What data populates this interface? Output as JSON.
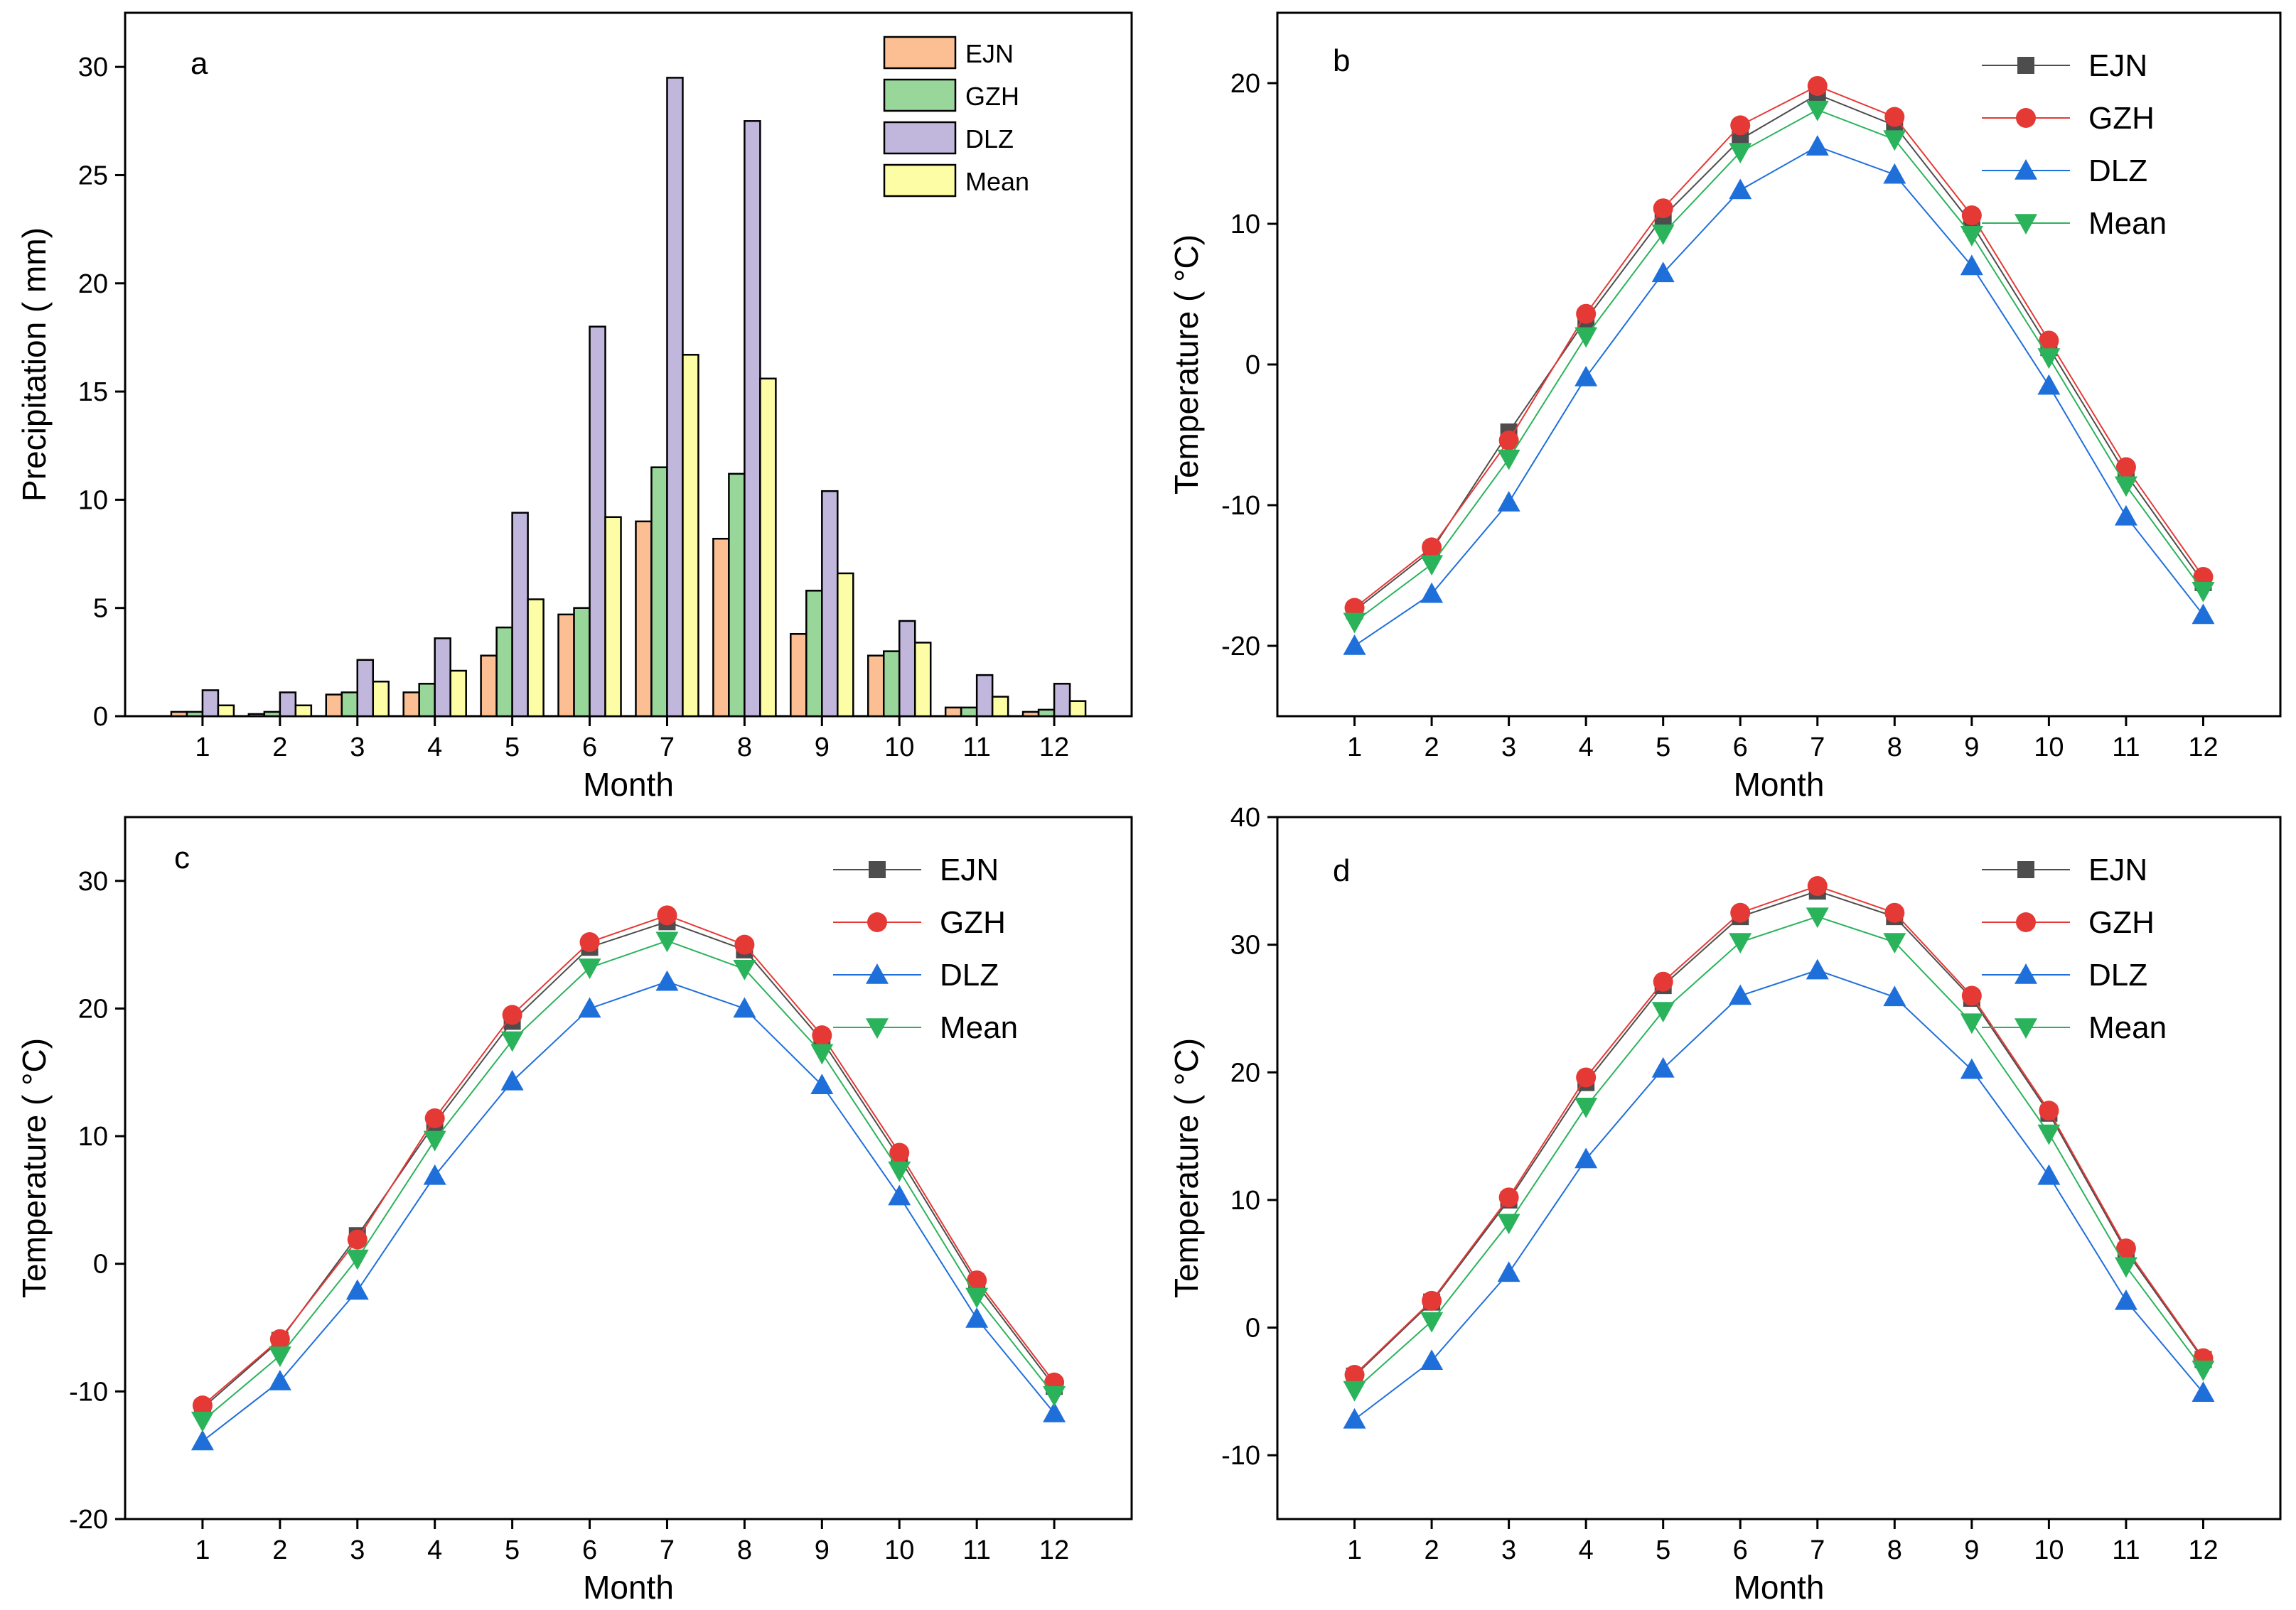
{
  "figure": {
    "panel_count": 4
  },
  "chart_data": [
    {
      "type": "bar",
      "panel": "a",
      "xlabel": "Month",
      "ylabel": "Precipitation ( mm)",
      "ylim": [
        0,
        32.5
      ],
      "yticks": [
        0,
        5,
        10,
        15,
        20,
        25,
        30
      ],
      "categories": [
        "1",
        "2",
        "3",
        "4",
        "5",
        "6",
        "7",
        "8",
        "9",
        "10",
        "11",
        "12"
      ],
      "legend_position": "top-right",
      "series": [
        {
          "name": "EJN",
          "color": "#fbbf93",
          "values": [
            0.2,
            0.1,
            1.0,
            1.1,
            2.8,
            4.7,
            9.0,
            8.2,
            3.8,
            2.8,
            0.4,
            0.2
          ]
        },
        {
          "name": "GZH",
          "color": "#98d69a",
          "values": [
            0.2,
            0.2,
            1.1,
            1.5,
            4.1,
            5.0,
            11.5,
            11.2,
            5.8,
            3.0,
            0.4,
            0.3
          ]
        },
        {
          "name": "DLZ",
          "color": "#c1b6dc",
          "values": [
            1.2,
            1.1,
            2.6,
            3.6,
            9.4,
            18.0,
            29.5,
            27.5,
            10.4,
            4.4,
            1.9,
            1.5
          ]
        },
        {
          "name": "Mean",
          "color": "#fdfda6",
          "values": [
            0.5,
            0.5,
            1.6,
            2.1,
            5.4,
            9.2,
            16.7,
            15.6,
            6.6,
            3.4,
            0.9,
            0.7
          ]
        }
      ]
    },
    {
      "type": "line",
      "panel": "b",
      "xlabel": "Month",
      "ylabel": "Temperature ( °C)",
      "ylim": [
        -25,
        25
      ],
      "yticks": [
        -20,
        -10,
        0,
        10,
        20
      ],
      "x": [
        1,
        2,
        3,
        4,
        5,
        6,
        7,
        8,
        9,
        10,
        11,
        12
      ],
      "legend_position": "top-right",
      "series": [
        {
          "name": "EJN",
          "color": "#4d4d4d",
          "marker": "square",
          "values": [
            -17.5,
            -13.2,
            -4.8,
            3.2,
            10.5,
            16.0,
            19.2,
            17.0,
            10.0,
            1.2,
            -7.8,
            -15.5
          ]
        },
        {
          "name": "GZH",
          "color": "#e53935",
          "marker": "circle",
          "values": [
            -17.3,
            -13.0,
            -5.4,
            3.6,
            11.1,
            17.0,
            19.8,
            17.6,
            10.6,
            1.7,
            -7.3,
            -15.1
          ]
        },
        {
          "name": "DLZ",
          "color": "#1f6fdb",
          "marker": "triangle-up",
          "values": [
            -20.0,
            -16.3,
            -9.8,
            -0.9,
            6.5,
            12.4,
            15.5,
            13.5,
            7.0,
            -1.5,
            -10.8,
            -17.8
          ]
        },
        {
          "name": "Mean",
          "color": "#2bb35b",
          "marker": "triangle-down",
          "values": [
            -18.3,
            -14.2,
            -6.7,
            2.0,
            9.3,
            15.1,
            18.1,
            16.0,
            9.2,
            0.5,
            -8.6,
            -16.1
          ]
        }
      ]
    },
    {
      "type": "line",
      "panel": "c",
      "xlabel": "Month",
      "ylabel": "Temperature ( °C)",
      "ylim": [
        -20,
        35
      ],
      "yticks": [
        -20,
        -10,
        0,
        10,
        20,
        30
      ],
      "x": [
        1,
        2,
        3,
        4,
        5,
        6,
        7,
        8,
        9,
        10,
        11,
        12
      ],
      "legend_position": "top-right",
      "series": [
        {
          "name": "EJN",
          "color": "#4d4d4d",
          "marker": "square",
          "values": [
            -11.3,
            -6.0,
            2.2,
            11.0,
            19.0,
            24.8,
            26.8,
            24.6,
            17.5,
            8.3,
            -1.6,
            -9.6
          ]
        },
        {
          "name": "GZH",
          "color": "#e53935",
          "marker": "circle",
          "values": [
            -11.1,
            -5.9,
            1.9,
            11.4,
            19.5,
            25.2,
            27.3,
            25.0,
            17.9,
            8.7,
            -1.3,
            -9.3
          ]
        },
        {
          "name": "DLZ",
          "color": "#1f6fdb",
          "marker": "triangle-up",
          "values": [
            -13.9,
            -9.2,
            -2.1,
            6.9,
            14.3,
            20.0,
            22.1,
            20.0,
            14.0,
            5.3,
            -4.3,
            -11.7
          ]
        },
        {
          "name": "Mean",
          "color": "#2bb35b",
          "marker": "triangle-down",
          "values": [
            -12.3,
            -7.2,
            0.4,
            9.7,
            17.5,
            23.2,
            25.3,
            23.1,
            16.5,
            7.3,
            -2.6,
            -10.3
          ]
        }
      ]
    },
    {
      "type": "line",
      "panel": "d",
      "xlabel": "Month",
      "ylabel": "Temperature ( °C)",
      "ylim": [
        -15,
        40
      ],
      "yticks": [
        -10,
        0,
        10,
        20,
        30,
        40
      ],
      "x": [
        1,
        2,
        3,
        4,
        5,
        6,
        7,
        8,
        9,
        10,
        11,
        12
      ],
      "legend_position": "top-right",
      "series": [
        {
          "name": "EJN",
          "color": "#4d4d4d",
          "marker": "square",
          "values": [
            -3.8,
            2.0,
            10.0,
            19.2,
            26.8,
            32.2,
            34.2,
            32.2,
            25.8,
            16.8,
            6.0,
            -2.5
          ]
        },
        {
          "name": "GZH",
          "color": "#e53935",
          "marker": "circle",
          "values": [
            -3.7,
            2.1,
            10.2,
            19.6,
            27.1,
            32.5,
            34.6,
            32.5,
            26.0,
            17.0,
            6.2,
            -2.4
          ]
        },
        {
          "name": "DLZ",
          "color": "#1f6fdb",
          "marker": "triangle-up",
          "values": [
            -7.2,
            -2.6,
            4.3,
            13.2,
            20.3,
            26.0,
            28.0,
            25.9,
            20.2,
            11.9,
            2.1,
            -5.1
          ]
        },
        {
          "name": "Mean",
          "color": "#2bb35b",
          "marker": "triangle-down",
          "values": [
            -4.9,
            0.5,
            8.2,
            17.3,
            24.8,
            30.2,
            32.2,
            30.2,
            23.9,
            15.2,
            4.8,
            -3.3
          ]
        }
      ]
    }
  ]
}
